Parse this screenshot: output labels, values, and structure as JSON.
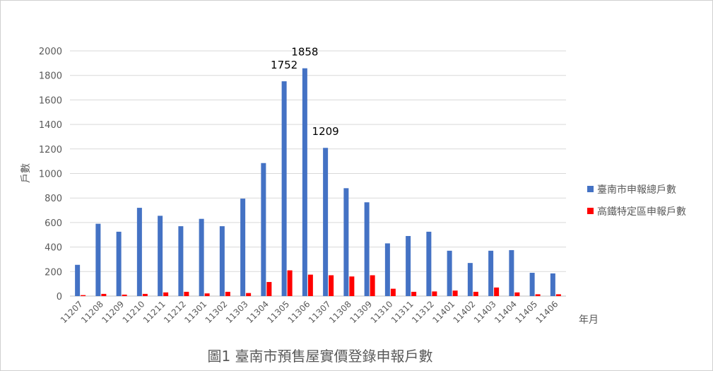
{
  "chart_data": {
    "type": "bar",
    "title": "圖1  臺南市預售屋實價登錄申報戶數",
    "xlabel": "年月",
    "ylabel": "戶數",
    "ylim": [
      0,
      2000
    ],
    "yticks": [
      "0",
      "200",
      "400",
      "600",
      "800",
      "1000",
      "1200",
      "1400",
      "1600",
      "1800",
      "2000"
    ],
    "grid": true,
    "legend_position": "right",
    "categories": [
      "11207",
      "11208",
      "11209",
      "11210",
      "11211",
      "11212",
      "11301",
      "11302",
      "11303",
      "11304",
      "11305",
      "11306",
      "11307",
      "11308",
      "11309",
      "11310",
      "11311",
      "11312",
      "11401",
      "11402",
      "11403",
      "11404",
      "11405",
      "11406"
    ],
    "series": [
      {
        "name": "臺南市申報總戶數",
        "color": "#4472c4",
        "values": [
          255,
          590,
          525,
          720,
          655,
          570,
          630,
          570,
          795,
          1085,
          1752,
          1858,
          1209,
          880,
          765,
          430,
          490,
          525,
          370,
          270,
          370,
          375,
          190,
          185
        ]
      },
      {
        "name": "高鐵特定區申報戶數",
        "color": "#ff0000",
        "values": [
          8,
          18,
          12,
          18,
          30,
          35,
          22,
          35,
          25,
          115,
          210,
          175,
          170,
          160,
          170,
          60,
          35,
          38,
          45,
          35,
          70,
          30,
          15,
          15
        ]
      }
    ],
    "data_labels": [
      {
        "series": 0,
        "index": 10,
        "text": "1752"
      },
      {
        "series": 0,
        "index": 11,
        "text": "1858"
      },
      {
        "series": 0,
        "index": 12,
        "text": "1209"
      }
    ]
  }
}
